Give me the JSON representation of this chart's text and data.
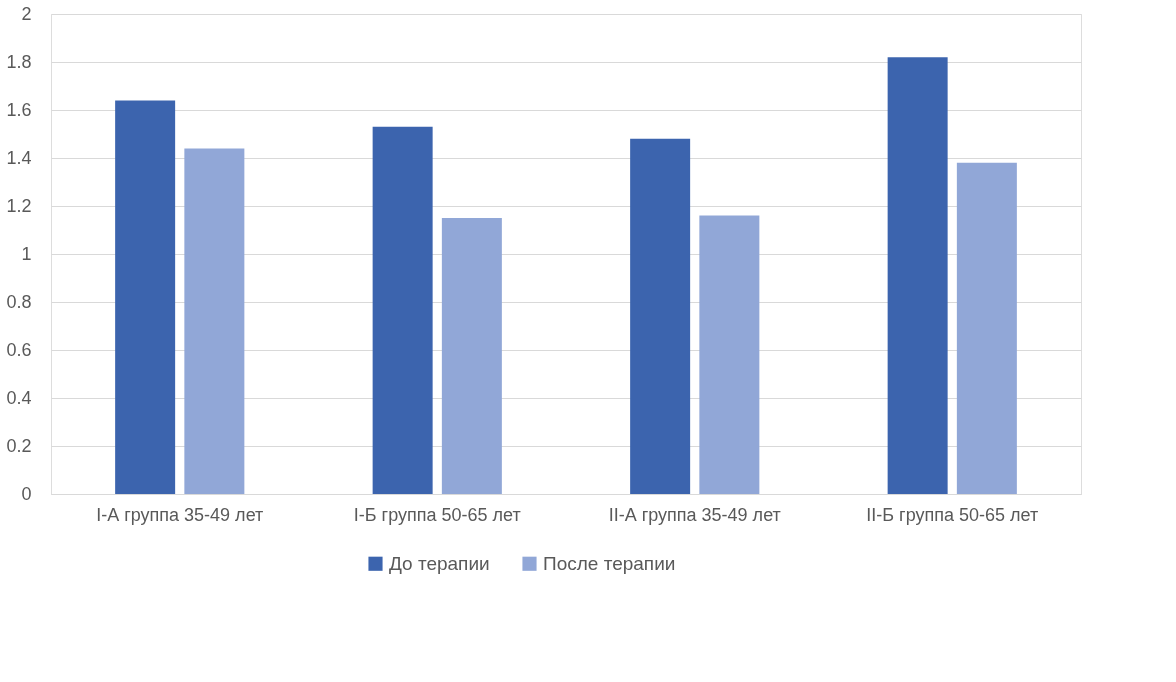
{
  "chart_data": {
    "type": "bar",
    "categories": [
      "I-А группа 35-49 лет",
      "I-Б группа 50-65 лет",
      "II-А группа 35-49 лет",
      "II-Б группа 50-65 лет"
    ],
    "series": [
      {
        "name": "До терапии",
        "color": "#3c64ae",
        "values": [
          1.64,
          1.53,
          1.48,
          1.82
        ]
      },
      {
        "name": "После терапии",
        "color": "#91a7d7",
        "values": [
          1.44,
          1.15,
          1.16,
          1.38
        ]
      }
    ],
    "ylim": [
      0,
      2
    ],
    "yticks": [
      0,
      0.2,
      0.4,
      0.6,
      0.8,
      1,
      1.2,
      1.4,
      1.6,
      1.8,
      2
    ],
    "grid": "y",
    "legend": "bottom"
  }
}
